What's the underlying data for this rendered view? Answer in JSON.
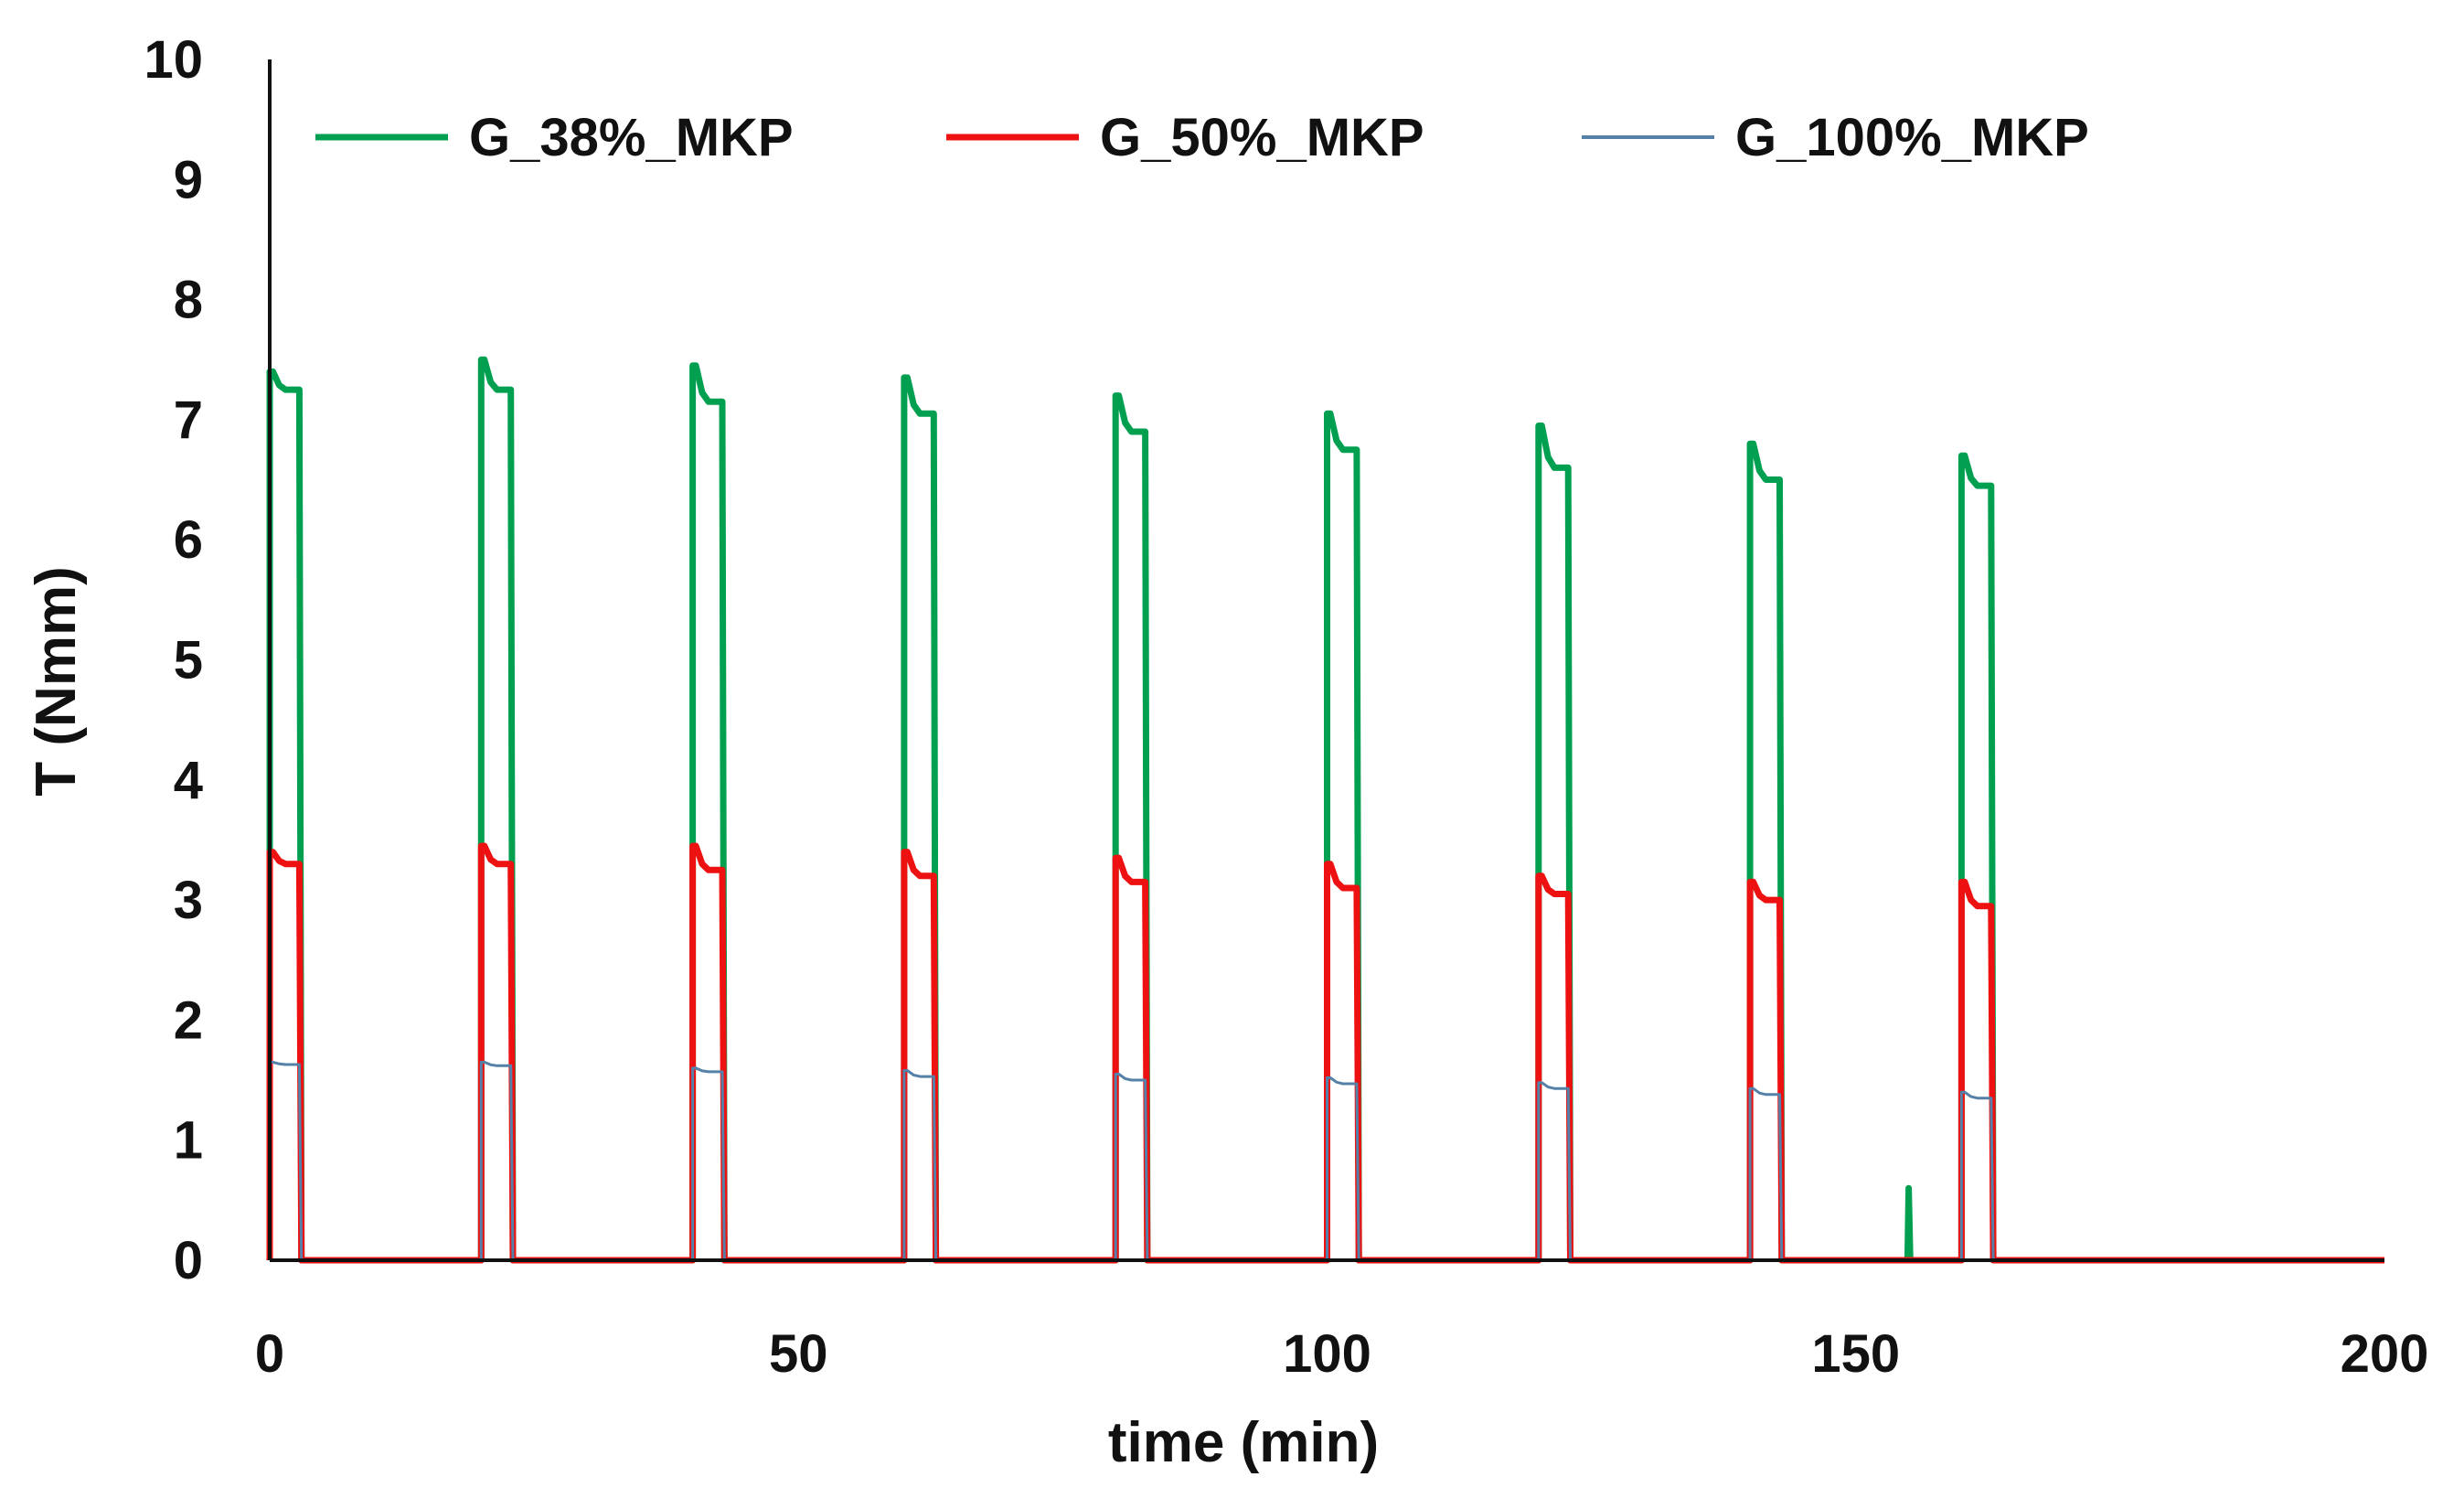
{
  "chart_data": {
    "type": "line",
    "title": "",
    "xlabel": "time (min)",
    "ylabel": "T (Nmm)",
    "xlim": [
      0,
      200
    ],
    "ylim": [
      0,
      10
    ],
    "x_ticks": [
      0,
      50,
      100,
      150,
      200
    ],
    "y_ticks": [
      0,
      1,
      2,
      3,
      4,
      5,
      6,
      7,
      8,
      9,
      10
    ],
    "grid": false,
    "legend_position": "top",
    "pulse_starts": [
      0,
      20,
      40,
      60,
      80,
      100,
      120,
      140,
      160
    ],
    "pulse_duration": 3,
    "series": [
      {
        "name": "G_38%_MKP",
        "color": "#00A050",
        "line_width": "thick",
        "peaks": [
          7.4,
          7.5,
          7.45,
          7.35,
          7.2,
          7.05,
          6.95,
          6.8,
          6.7
        ],
        "plateau": [
          7.25,
          7.25,
          7.15,
          7.05,
          6.9,
          6.75,
          6.6,
          6.5,
          6.45
        ],
        "extra_spike": {
          "x": 155,
          "value": 0.6
        }
      },
      {
        "name": "G_50%_MKP",
        "color": "#EE1111",
        "line_width": "thick",
        "peaks": [
          3.4,
          3.45,
          3.45,
          3.4,
          3.35,
          3.3,
          3.2,
          3.15,
          3.15
        ],
        "plateau": [
          3.3,
          3.3,
          3.25,
          3.2,
          3.15,
          3.1,
          3.05,
          3.0,
          2.95
        ]
      },
      {
        "name": "G_100%_MKP",
        "color": "#5580A8",
        "line_width": "thin",
        "peaks": [
          1.65,
          1.65,
          1.6,
          1.58,
          1.55,
          1.52,
          1.48,
          1.43,
          1.4
        ],
        "plateau": [
          1.63,
          1.62,
          1.57,
          1.53,
          1.5,
          1.47,
          1.43,
          1.38,
          1.35
        ]
      }
    ]
  }
}
